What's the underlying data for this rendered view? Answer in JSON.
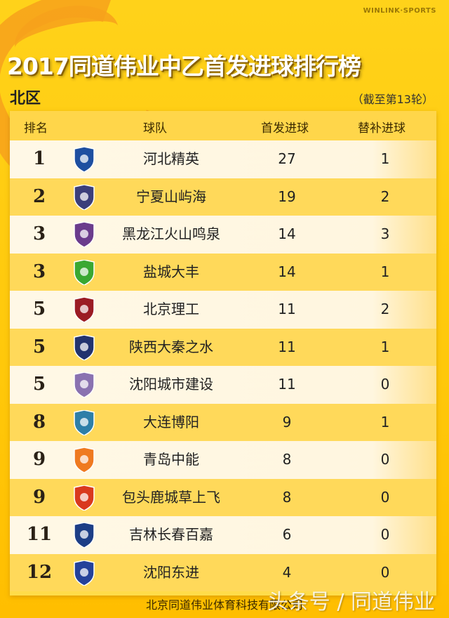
{
  "brand": "WINLINK·SPORTS",
  "title": "2017同道伟业中乙首发进球排行榜",
  "region": "北区",
  "as_of": "（截至第13轮）",
  "headers": {
    "rank": "排名",
    "team": "球队",
    "starting_goals": "首发进球",
    "sub_goals": "替补进球"
  },
  "rows": [
    {
      "rank": "1",
      "team": "河北精英",
      "starting_goals": "27",
      "sub_goals": "1",
      "logo_color": "#1e4fa0"
    },
    {
      "rank": "2",
      "team": "宁夏山屿海",
      "starting_goals": "19",
      "sub_goals": "2",
      "logo_color": "#3b3f7a"
    },
    {
      "rank": "3",
      "team": "黑龙江火山鸣泉",
      "starting_goals": "14",
      "sub_goals": "3",
      "logo_color": "#6b3c8c"
    },
    {
      "rank": "3",
      "team": "盐城大丰",
      "starting_goals": "14",
      "sub_goals": "1",
      "logo_color": "#3aa832"
    },
    {
      "rank": "5",
      "team": "北京理工",
      "starting_goals": "11",
      "sub_goals": "2",
      "logo_color": "#9b1c24"
    },
    {
      "rank": "5",
      "team": "陕西大秦之水",
      "starting_goals": "11",
      "sub_goals": "1",
      "logo_color": "#22336e"
    },
    {
      "rank": "5",
      "team": "沈阳城市建设",
      "starting_goals": "11",
      "sub_goals": "0",
      "logo_color": "#8a72b0"
    },
    {
      "rank": "8",
      "team": "大连博阳",
      "starting_goals": "9",
      "sub_goals": "1",
      "logo_color": "#2e7fa8"
    },
    {
      "rank": "9",
      "team": "青岛中能",
      "starting_goals": "8",
      "sub_goals": "0",
      "logo_color": "#ef7a20"
    },
    {
      "rank": "9",
      "team": "包头鹿城草上飞",
      "starting_goals": "8",
      "sub_goals": "0",
      "logo_color": "#d9391e"
    },
    {
      "rank": "11",
      "team": "吉林长春百嘉",
      "starting_goals": "6",
      "sub_goals": "0",
      "logo_color": "#1d3e86"
    },
    {
      "rank": "12",
      "team": "沈阳东进",
      "starting_goals": "4",
      "sub_goals": "0",
      "logo_color": "#24419a"
    }
  ],
  "footer": "北京同道伟业体育科技有限公司",
  "watermark": "头条号 / 同道伟业"
}
